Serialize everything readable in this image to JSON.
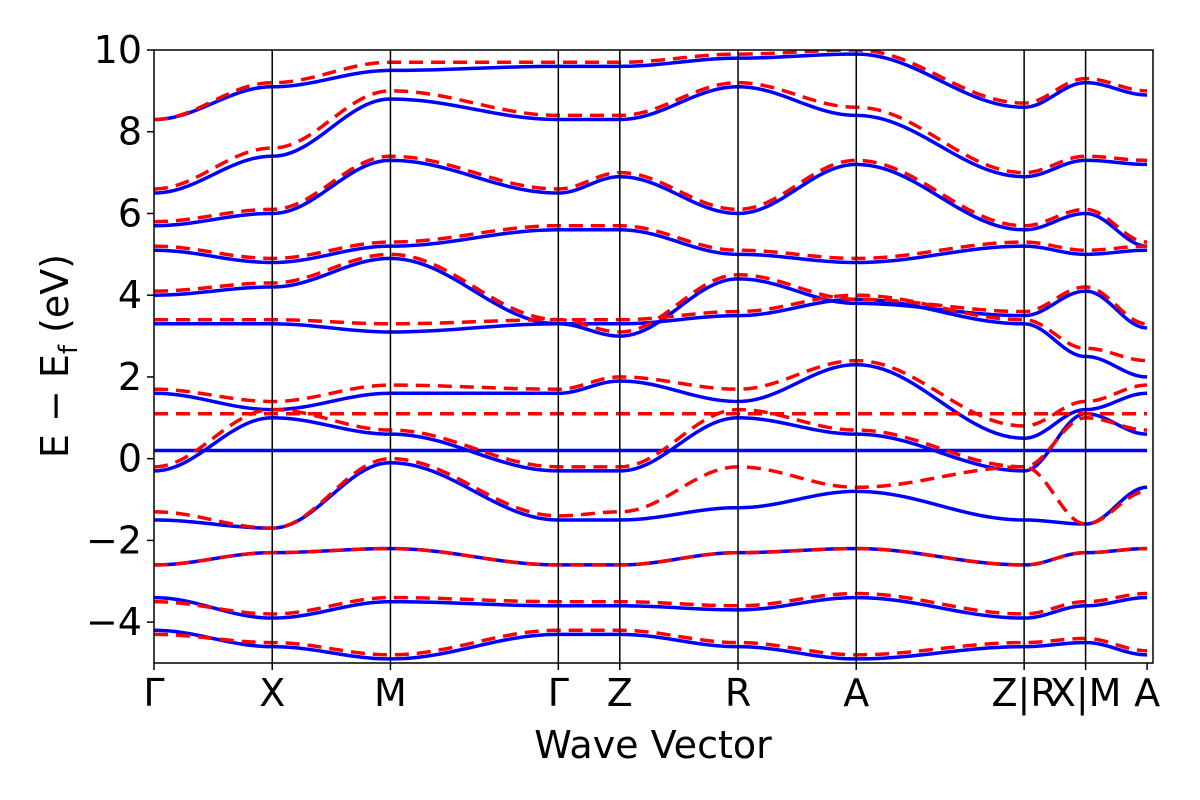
{
  "chart_data": {
    "type": "line",
    "title": "",
    "xlabel": "Wave Vector",
    "ylabel": "E − E",
    "ylabel_subscript": "f",
    "ylabel_unit": "(eV)",
    "ylim": [
      -5,
      10
    ],
    "yticks": [
      {
        "value": -4,
        "label": "−4"
      },
      {
        "value": -2,
        "label": "−2"
      },
      {
        "value": 0,
        "label": "0"
      },
      {
        "value": 2,
        "label": "2"
      },
      {
        "value": 4,
        "label": "4"
      },
      {
        "value": 6,
        "label": "6"
      },
      {
        "value": 8,
        "label": "8"
      },
      {
        "value": 10,
        "label": "10"
      }
    ],
    "xlim": [
      0,
      8.45
    ],
    "kpoints": [
      {
        "x": 0.0,
        "label": "Γ"
      },
      {
        "x": 1.0,
        "label": "X"
      },
      {
        "x": 2.0,
        "label": "M"
      },
      {
        "x": 3.42,
        "label": "Γ"
      },
      {
        "x": 3.94,
        "label": "Z"
      },
      {
        "x": 4.94,
        "label": "R"
      },
      {
        "x": 5.94,
        "label": "A"
      },
      {
        "x": 7.36,
        "label": "Z|R"
      },
      {
        "x": 7.88,
        "label": "X|M"
      },
      {
        "x": 8.4,
        "label": "A"
      }
    ],
    "colors": {
      "series_a": "#0000ff",
      "series_b": "#ff0000",
      "vline": "#000000"
    },
    "series": [
      {
        "name": "series_a",
        "style": "solid",
        "bands": [
          [
            -4.2,
            -4.6,
            -4.9,
            -4.3,
            -4.3,
            -4.6,
            -4.9,
            -4.6,
            -4.5,
            -4.8
          ],
          [
            -3.4,
            -3.9,
            -3.5,
            -3.6,
            -3.6,
            -3.7,
            -3.4,
            -3.9,
            -3.6,
            -3.4
          ],
          [
            -2.6,
            -2.3,
            -2.2,
            -2.6,
            -2.6,
            -2.3,
            -2.2,
            -2.6,
            -2.3,
            -2.2
          ],
          [
            -1.5,
            -1.7,
            -0.1,
            -1.5,
            -1.5,
            -1.2,
            -0.8,
            -1.5,
            -1.6,
            -0.7
          ],
          [
            -0.3,
            1.0,
            0.6,
            -0.3,
            -0.3,
            1.0,
            0.6,
            -0.3,
            1.1,
            0.6
          ],
          [
            0.2,
            0.2,
            0.2,
            0.2,
            0.2,
            0.2,
            0.2,
            0.2,
            0.2,
            0.2
          ],
          [
            1.6,
            1.2,
            1.6,
            1.6,
            1.9,
            1.4,
            2.3,
            0.5,
            1.2,
            1.6
          ],
          [
            3.3,
            3.3,
            3.1,
            3.3,
            3.3,
            3.5,
            3.9,
            3.3,
            2.5,
            2.0
          ],
          [
            4.0,
            4.2,
            4.9,
            3.3,
            3.0,
            4.4,
            3.8,
            3.5,
            4.1,
            3.2
          ],
          [
            5.1,
            4.8,
            5.2,
            5.6,
            5.6,
            5.0,
            4.8,
            5.2,
            5.0,
            5.1
          ],
          [
            5.7,
            6.0,
            7.3,
            6.5,
            6.9,
            6.0,
            7.2,
            5.6,
            6.0,
            5.2
          ],
          [
            6.5,
            7.4,
            8.8,
            8.3,
            8.3,
            9.1,
            8.4,
            6.9,
            7.3,
            7.2
          ],
          [
            8.3,
            9.1,
            9.5,
            9.6,
            9.6,
            9.8,
            9.9,
            8.6,
            9.2,
            8.9
          ]
        ]
      },
      {
        "name": "series_b",
        "style": "dashed",
        "bands": [
          [
            -4.3,
            -4.5,
            -4.8,
            -4.2,
            -4.2,
            -4.5,
            -4.8,
            -4.5,
            -4.4,
            -4.7
          ],
          [
            -3.5,
            -3.8,
            -3.4,
            -3.5,
            -3.5,
            -3.6,
            -3.3,
            -3.8,
            -3.5,
            -3.3
          ],
          [
            -2.6,
            -2.3,
            -2.2,
            -2.6,
            -2.6,
            -2.3,
            -2.2,
            -2.6,
            -2.3,
            -2.2
          ],
          [
            -1.3,
            -1.7,
            0.0,
            -1.4,
            -1.3,
            -0.2,
            -0.7,
            -0.2,
            -1.6,
            -0.8
          ],
          [
            -0.2,
            1.2,
            0.7,
            -0.2,
            -0.2,
            1.2,
            0.7,
            -0.2,
            1.0,
            0.7
          ],
          [
            1.1,
            1.1,
            1.1,
            1.1,
            1.1,
            1.1,
            1.1,
            1.1,
            1.1,
            1.1
          ],
          [
            1.7,
            1.4,
            1.8,
            1.7,
            2.0,
            1.7,
            2.4,
            0.8,
            1.4,
            1.8
          ],
          [
            3.4,
            3.4,
            3.3,
            3.4,
            3.4,
            3.6,
            4.0,
            3.4,
            2.7,
            2.4
          ],
          [
            4.1,
            4.3,
            5.0,
            3.4,
            3.1,
            4.5,
            3.9,
            3.6,
            4.2,
            3.3
          ],
          [
            5.2,
            4.9,
            5.3,
            5.7,
            5.7,
            5.1,
            4.9,
            5.3,
            5.1,
            5.2
          ],
          [
            5.8,
            6.1,
            7.4,
            6.6,
            7.0,
            6.1,
            7.3,
            5.7,
            6.1,
            5.3
          ],
          [
            6.6,
            7.6,
            9.0,
            8.4,
            8.4,
            9.2,
            8.6,
            7.0,
            7.4,
            7.3
          ],
          [
            8.3,
            9.2,
            9.7,
            9.7,
            9.7,
            9.9,
            10.0,
            8.7,
            9.3,
            9.0
          ]
        ]
      }
    ]
  }
}
